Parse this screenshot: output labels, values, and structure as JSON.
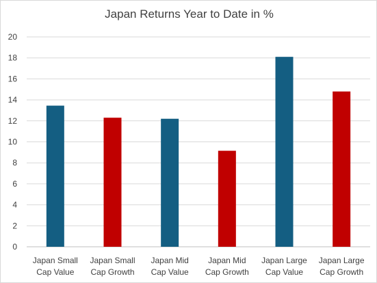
{
  "chart_data": {
    "type": "bar",
    "title": "Japan Returns Year to Date in %",
    "categories": [
      [
        "Japan Small",
        "Cap Value"
      ],
      [
        "Japan Small",
        "Cap Growth"
      ],
      [
        "Japan Mid",
        "Cap Value"
      ],
      [
        "Japan Mid",
        "Cap Growth"
      ],
      [
        "Japan Large",
        "Cap Value"
      ],
      [
        "Japan Large",
        "Cap Growth"
      ]
    ],
    "values": [
      13.45,
      12.3,
      12.2,
      9.15,
      18.1,
      14.8
    ],
    "bar_colors": [
      "#145e82",
      "#c00000",
      "#145e82",
      "#c00000",
      "#145e82",
      "#c00000"
    ],
    "ylim": [
      0,
      20
    ],
    "yticks": [
      0,
      2,
      4,
      6,
      8,
      10,
      12,
      14,
      16,
      18,
      20
    ],
    "grid": true,
    "xlabel": "",
    "ylabel": ""
  }
}
